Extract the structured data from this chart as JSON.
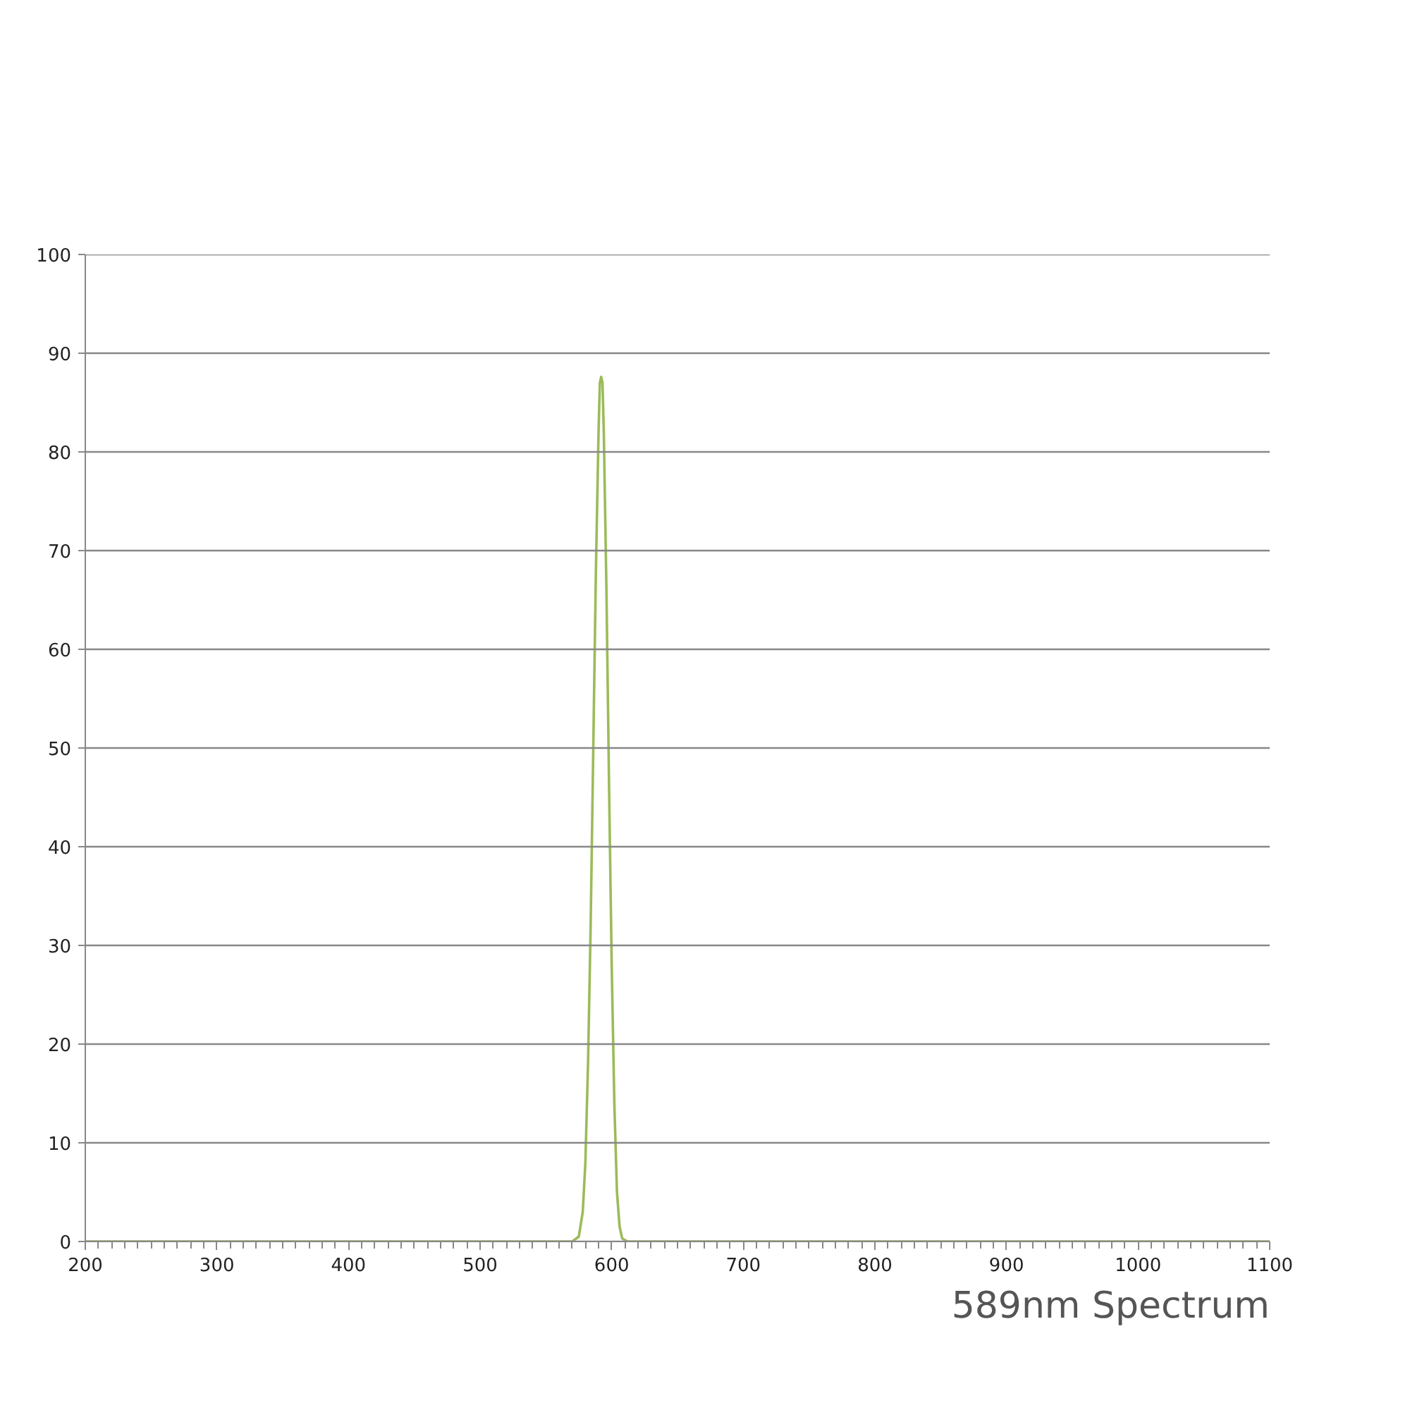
{
  "chart_data": {
    "type": "line",
    "title": "589nm Spectrum",
    "x": [
      200,
      570,
      575,
      578,
      580,
      582,
      584,
      586,
      588,
      590,
      591,
      592,
      593,
      594,
      596,
      598,
      600,
      602,
      604,
      606,
      608,
      612,
      1100
    ],
    "series": [
      {
        "color": "#9bbb59",
        "values": [
          0,
          0,
          0.5,
          3,
          8,
          18,
          32,
          50,
          68,
          82,
          87,
          87.6,
          87,
          82,
          66,
          46,
          28,
          14,
          5,
          1.5,
          0.3,
          0,
          0
        ]
      }
    ],
    "xlim": [
      200,
      1100
    ],
    "xticks": [
      200,
      300,
      400,
      500,
      600,
      700,
      800,
      900,
      1000,
      1100
    ],
    "ylim": [
      0,
      100
    ],
    "yticks": [
      0,
      10,
      20,
      30,
      40,
      50,
      60,
      70,
      80,
      90,
      100
    ],
    "grid": "y",
    "marker": "none",
    "line_style": "solid"
  }
}
